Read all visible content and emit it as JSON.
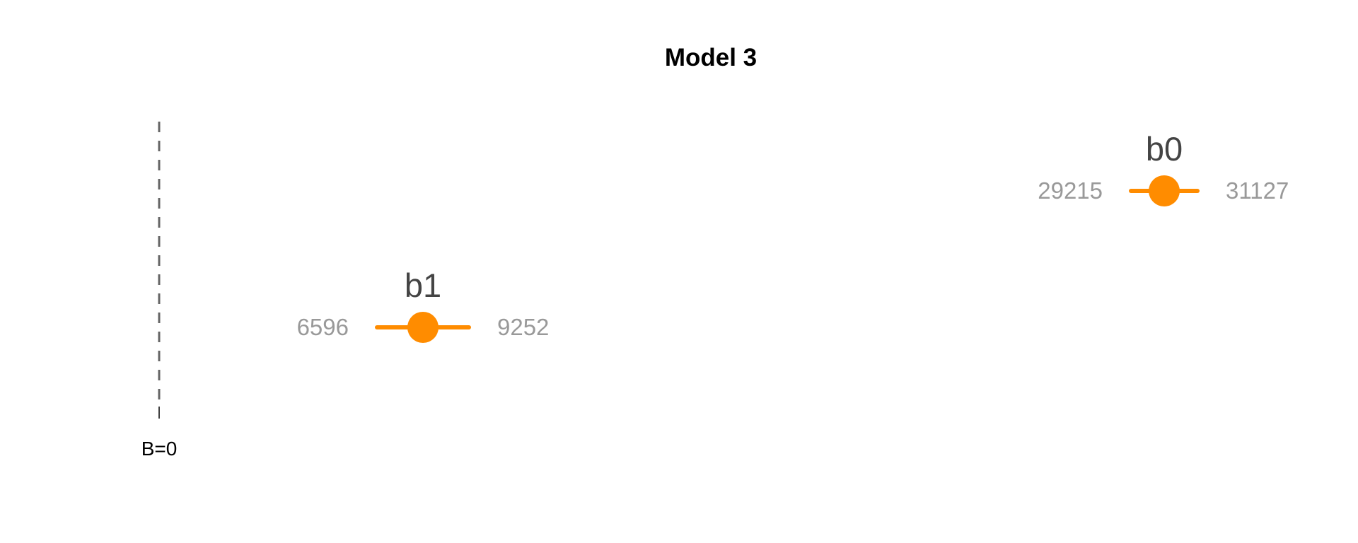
{
  "chart_data": {
    "type": "forest",
    "title": "Model 3",
    "reference": {
      "value": 0,
      "label": "B=0"
    },
    "color": "#ff8c00",
    "reference_color": "#666666",
    "points": [
      {
        "name": "b0",
        "lower": 29215,
        "upper": 31127,
        "lower_label": "29215",
        "upper_label": "31127"
      },
      {
        "name": "b1",
        "lower": 6596,
        "upper": 9252,
        "lower_label": "6596",
        "upper_label": "9252"
      }
    ]
  }
}
